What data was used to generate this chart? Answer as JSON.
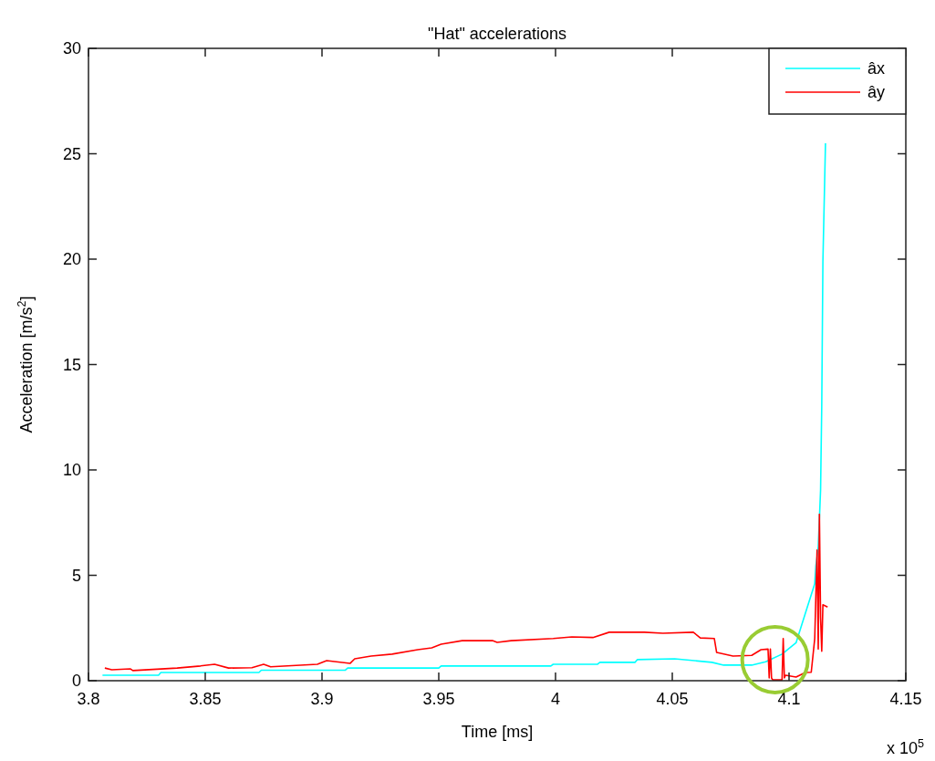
{
  "chart_data": {
    "type": "line",
    "title": "\"Hat\" accelerations",
    "xlabel": "Time [ms]",
    "ylabel": "Acceleration [m/s$^{2}$]",
    "annotations": [
      "x 10$^{5}$"
    ],
    "xlim": [
      3.8,
      4.15
    ],
    "xticks": [
      3.8,
      3.85,
      3.9,
      3.95,
      4,
      4.05,
      4.1,
      4.15
    ],
    "ylim": [
      0,
      30
    ],
    "yticks": [
      0,
      5,
      10,
      15,
      20,
      25,
      30
    ],
    "grid": false,
    "legend": "top right",
    "line_style": "solid",
    "marker": "none",
    "series": [
      {
        "name": "âx",
        "color": "#00ffff",
        "x": [
          3.806,
          3.83,
          3.831,
          3.873,
          3.874,
          3.91,
          3.911,
          3.95,
          3.951,
          3.998,
          3.999,
          4.018,
          4.019,
          4.034,
          4.035,
          4.051,
          4.067,
          4.072,
          4.084,
          4.09,
          4.097,
          4.103,
          4.107,
          4.111,
          4.1115,
          4.1125,
          4.1135,
          4.114,
          4.1145,
          4.1156
        ],
        "values": [
          0.26,
          0.26,
          0.39,
          0.39,
          0.5,
          0.5,
          0.6,
          0.6,
          0.7,
          0.7,
          0.78,
          0.78,
          0.87,
          0.87,
          1.0,
          1.04,
          0.87,
          0.74,
          0.74,
          0.9,
          1.26,
          1.8,
          3.2,
          4.6,
          5.45,
          6.3,
          9.05,
          13.0,
          19.9,
          25.5
        ]
      },
      {
        "name": "ây",
        "color": "#ff0000",
        "x": [
          3.807,
          3.81,
          3.818,
          3.819,
          3.838,
          3.848,
          3.854,
          3.86,
          3.87,
          3.875,
          3.878,
          3.898,
          3.902,
          3.912,
          3.914,
          3.921,
          3.93,
          3.941,
          3.947,
          3.951,
          3.96,
          3.973,
          3.975,
          3.981,
          3.999,
          4.007,
          4.016,
          4.023,
          4.038,
          4.046,
          4.059,
          4.062,
          4.068,
          4.069,
          4.076,
          4.084,
          4.088,
          4.091,
          4.0915,
          4.092,
          4.0925,
          4.093,
          4.097,
          4.0975,
          4.098,
          4.0985,
          4.103,
          4.107,
          4.1095,
          4.111,
          4.112,
          4.1125,
          4.113,
          4.1135,
          4.114,
          4.1145,
          4.1165
        ],
        "values": [
          0.6,
          0.52,
          0.56,
          0.48,
          0.6,
          0.7,
          0.78,
          0.6,
          0.62,
          0.78,
          0.66,
          0.78,
          0.95,
          0.82,
          1.04,
          1.17,
          1.26,
          1.47,
          1.56,
          1.73,
          1.9,
          1.9,
          1.82,
          1.9,
          2.0,
          2.08,
          2.05,
          2.3,
          2.3,
          2.25,
          2.3,
          2.03,
          2.0,
          1.34,
          1.17,
          1.2,
          1.47,
          1.5,
          0.13,
          1.5,
          0.13,
          0.04,
          0.04,
          2.0,
          0.13,
          0.26,
          0.17,
          0.39,
          0.4,
          2.0,
          6.2,
          1.5,
          7.9,
          3.0,
          1.4,
          3.6,
          3.5
        ]
      }
    ]
  }
}
